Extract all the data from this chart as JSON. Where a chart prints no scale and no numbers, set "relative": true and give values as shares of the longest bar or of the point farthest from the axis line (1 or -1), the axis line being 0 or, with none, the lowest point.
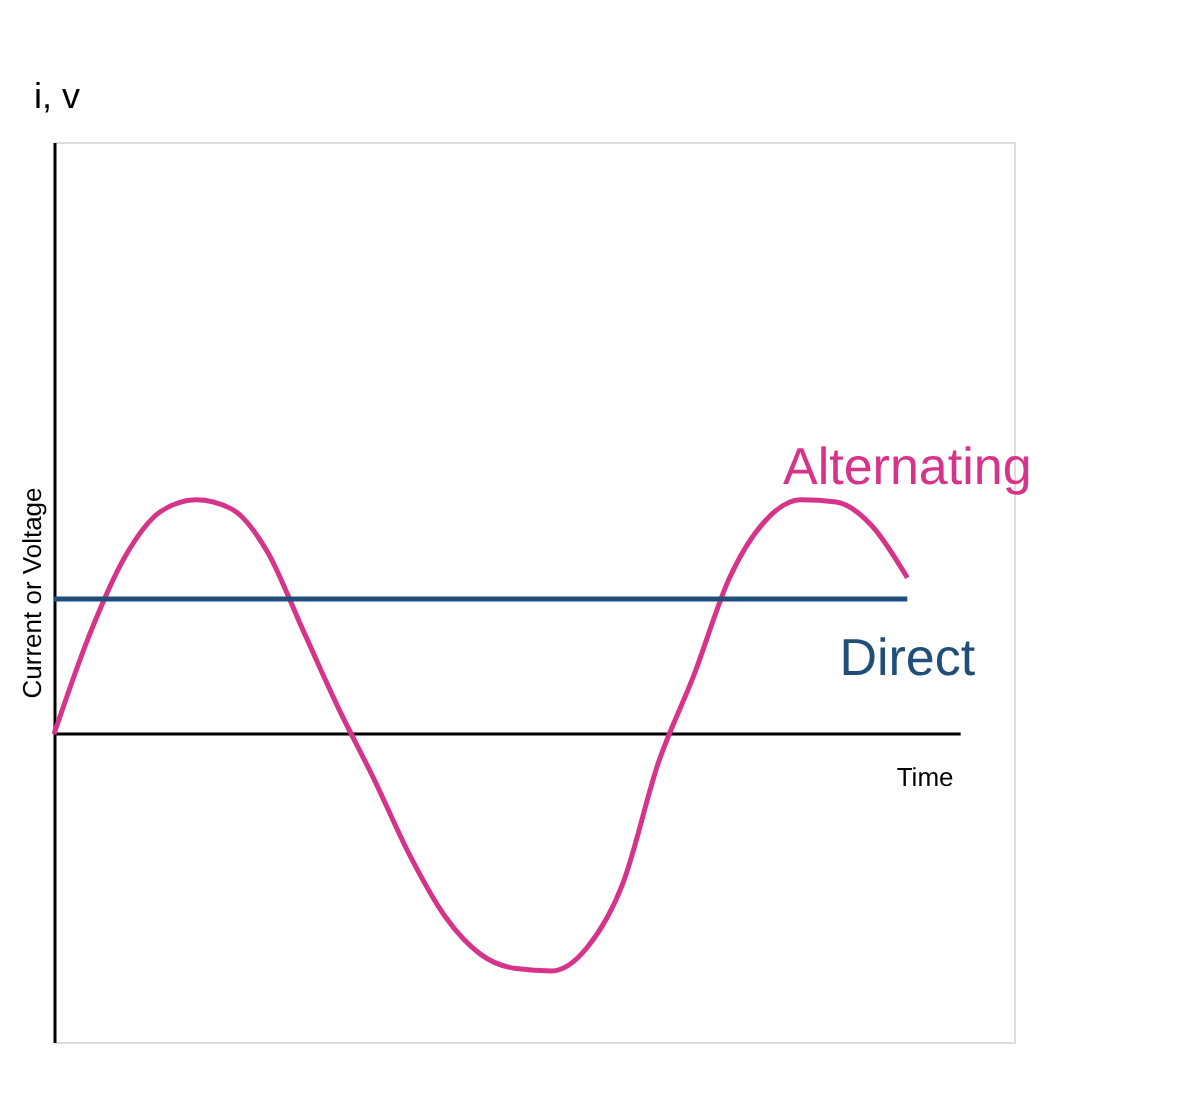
{
  "chart_data": {
    "type": "line",
    "relative": true,
    "xlabel": "Time",
    "ylabel": "Current or Voltage",
    "annotations": [
      "i, v"
    ],
    "categories": [
      null,
      null,
      null,
      null,
      null,
      null,
      null,
      null,
      null,
      null,
      null,
      null,
      null,
      null,
      null,
      null,
      null,
      null,
      null,
      null,
      null,
      null,
      null,
      null,
      null
    ],
    "series": [
      {
        "name": "Alternating",
        "color": "#d6338a",
        "values": [
          0,
          0.42,
          0.75,
          0.94,
          0.99,
          0.95,
          0.77,
          0.44,
          0.11,
          -0.19,
          -0.51,
          -0.77,
          -0.93,
          -0.99,
          -1,
          -0.9,
          -0.63,
          -0.12,
          0.25,
          0.66,
          0.9,
          0.99,
          0.98,
          0.88,
          0.66
        ]
      },
      {
        "name": "Direct",
        "color": "#1f4e79",
        "values": [
          0.57,
          0.57,
          0.57,
          0.57,
          0.57,
          0.57,
          0.57,
          0.57,
          0.57,
          0.57,
          0.57,
          0.57,
          0.57,
          0.57,
          0.57,
          0.57,
          0.57,
          0.57,
          0.57,
          0.57,
          0.57,
          0.57,
          0.57,
          0.57,
          0.57
        ]
      }
    ],
    "grid": false,
    "legend": false,
    "marker": "none",
    "line_style": "solid"
  }
}
